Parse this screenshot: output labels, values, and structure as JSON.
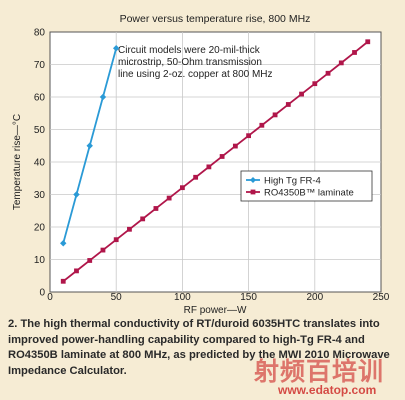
{
  "chart_data": {
    "type": "line",
    "title": "Power versus temperature rise, 800 MHz",
    "xlabel": "RF power—W",
    "ylabel": "Temperature rise—°C",
    "xlim": [
      0,
      250
    ],
    "ylim": [
      0,
      80
    ],
    "xticks": [
      0,
      50,
      100,
      150,
      200,
      250
    ],
    "yticks": [
      0,
      10,
      20,
      30,
      40,
      50,
      60,
      70,
      80
    ],
    "grid": true,
    "legend_position": "right-center",
    "annotation": "Circuit models were 20-mil-thick microstrip, 50-Ohm transmission line using 2-oz. copper at 800 MHz",
    "annotation_lines": [
      "Circuit models were 20-mil-thick",
      "microstrip, 50-Ohm transmission",
      "line using 2-oz. copper at 800 MHz"
    ],
    "series": [
      {
        "name": "High Tg FR-4",
        "color": "#2a9ad6",
        "marker": "diamond",
        "x": [
          10,
          20,
          30,
          40,
          50
        ],
        "y": [
          15,
          30,
          45,
          60,
          75
        ]
      },
      {
        "name": "RO4350B™ laminate",
        "color": "#b0164a",
        "marker": "square",
        "x": [
          10,
          20,
          30,
          40,
          50,
          60,
          70,
          80,
          90,
          100,
          110,
          120,
          130,
          140,
          150,
          160,
          170,
          180,
          190,
          200,
          210,
          220,
          230,
          240
        ],
        "y": [
          3.3,
          6.5,
          9.7,
          12.9,
          16.1,
          19.3,
          22.5,
          25.7,
          28.9,
          32.1,
          35.3,
          38.5,
          41.7,
          44.9,
          48.1,
          51.3,
          54.5,
          57.7,
          60.9,
          64.1,
          67.3,
          70.5,
          73.7,
          77
        ]
      }
    ]
  },
  "caption": "2. The high thermal conductivity of RT/duroid 6035HTC translates into improved power-handling capability compared to high-Tg FR-4 and RO4350B laminate at 800 MHz, as predicted by the MWI 2010 Microwave Impedance Calculator.",
  "watermark": {
    "chinese": "射频百培训",
    "url": "www.edatop.com"
  },
  "colors": {
    "background": "#f6ecd4",
    "plot_background": "#ffffff",
    "grid": "#c8c8c8"
  }
}
